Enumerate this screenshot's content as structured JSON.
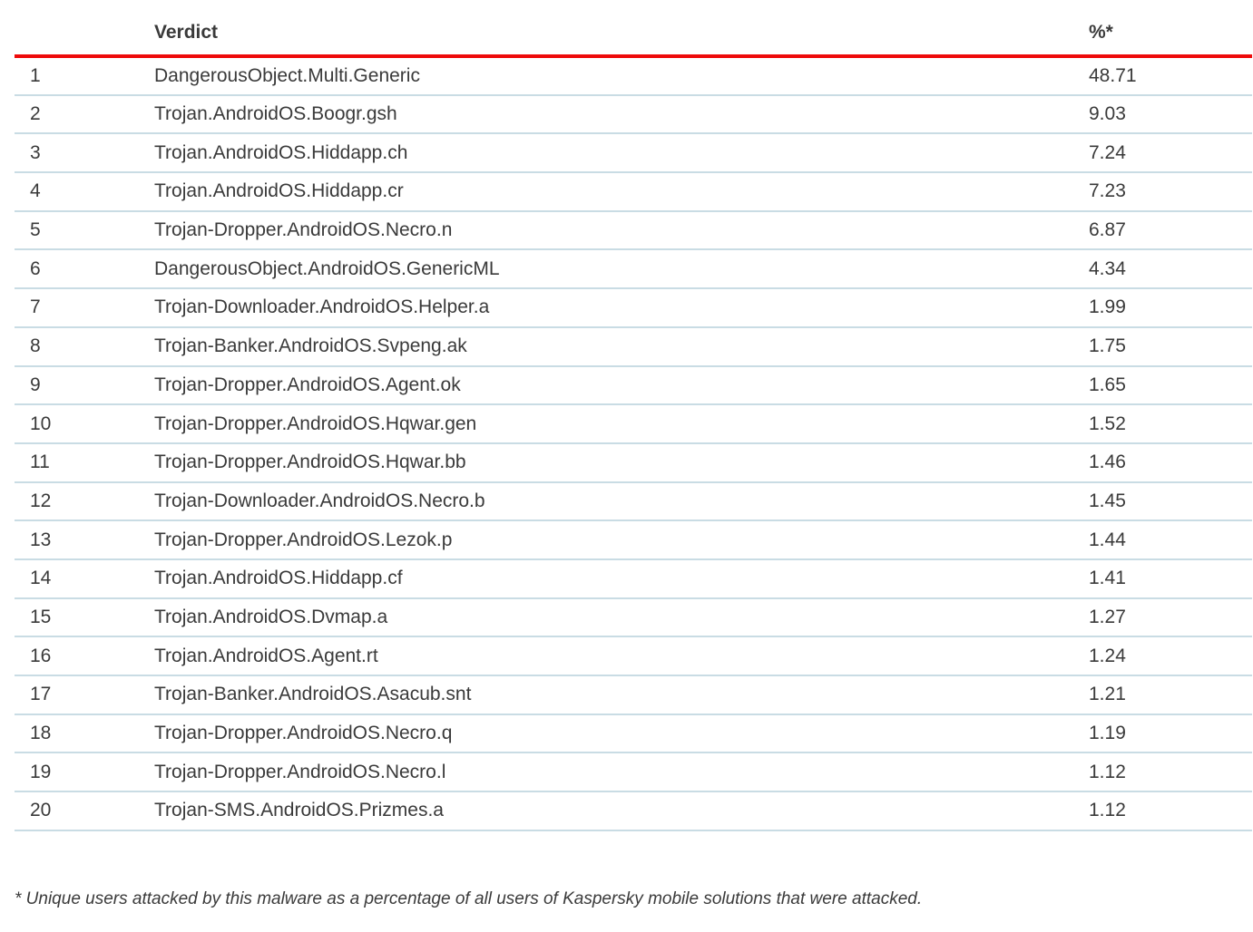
{
  "chart_data": {
    "type": "table",
    "columns": [
      "",
      "Verdict",
      "%*"
    ],
    "rows": [
      {
        "rank": "1",
        "verdict": "DangerousObject.Multi.Generic",
        "percent": "48.71"
      },
      {
        "rank": "2",
        "verdict": "Trojan.AndroidOS.Boogr.gsh",
        "percent": "9.03"
      },
      {
        "rank": "3",
        "verdict": "Trojan.AndroidOS.Hiddapp.ch",
        "percent": "7.24"
      },
      {
        "rank": "4",
        "verdict": "Trojan.AndroidOS.Hiddapp.cr",
        "percent": "7.23"
      },
      {
        "rank": "5",
        "verdict": "Trojan-Dropper.AndroidOS.Necro.n",
        "percent": "6.87"
      },
      {
        "rank": "6",
        "verdict": "DangerousObject.AndroidOS.GenericML",
        "percent": "4.34"
      },
      {
        "rank": "7",
        "verdict": "Trojan-Downloader.AndroidOS.Helper.a",
        "percent": "1.99"
      },
      {
        "rank": "8",
        "verdict": "Trojan-Banker.AndroidOS.Svpeng.ak",
        "percent": "1.75"
      },
      {
        "rank": "9",
        "verdict": "Trojan-Dropper.AndroidOS.Agent.ok",
        "percent": "1.65"
      },
      {
        "rank": "10",
        "verdict": "Trojan-Dropper.AndroidOS.Hqwar.gen",
        "percent": "1.52"
      },
      {
        "rank": "11",
        "verdict": "Trojan-Dropper.AndroidOS.Hqwar.bb",
        "percent": "1.46"
      },
      {
        "rank": "12",
        "verdict": "Trojan-Downloader.AndroidOS.Necro.b",
        "percent": "1.45"
      },
      {
        "rank": "13",
        "verdict": "Trojan-Dropper.AndroidOS.Lezok.p",
        "percent": "1.44"
      },
      {
        "rank": "14",
        "verdict": "Trojan.AndroidOS.Hiddapp.cf",
        "percent": "1.41"
      },
      {
        "rank": "15",
        "verdict": "Trojan.AndroidOS.Dvmap.a",
        "percent": "1.27"
      },
      {
        "rank": "16",
        "verdict": "Trojan.AndroidOS.Agent.rt",
        "percent": "1.24"
      },
      {
        "rank": "17",
        "verdict": "Trojan-Banker.AndroidOS.Asacub.snt",
        "percent": "1.21"
      },
      {
        "rank": "18",
        "verdict": "Trojan-Dropper.AndroidOS.Necro.q",
        "percent": "1.19"
      },
      {
        "rank": "19",
        "verdict": "Trojan-Dropper.AndroidOS.Necro.l",
        "percent": "1.12"
      },
      {
        "rank": "20",
        "verdict": "Trojan-SMS.AndroidOS.Prizmes.a",
        "percent": "1.12"
      }
    ]
  },
  "footnote": "* Unique users attacked by this malware as a percentage of all users of Kaspersky mobile solutions that were attacked.",
  "colors": {
    "accent_red": "#ee0a0a",
    "separator": "#c9dce4",
    "text": "#3a3a3a"
  }
}
